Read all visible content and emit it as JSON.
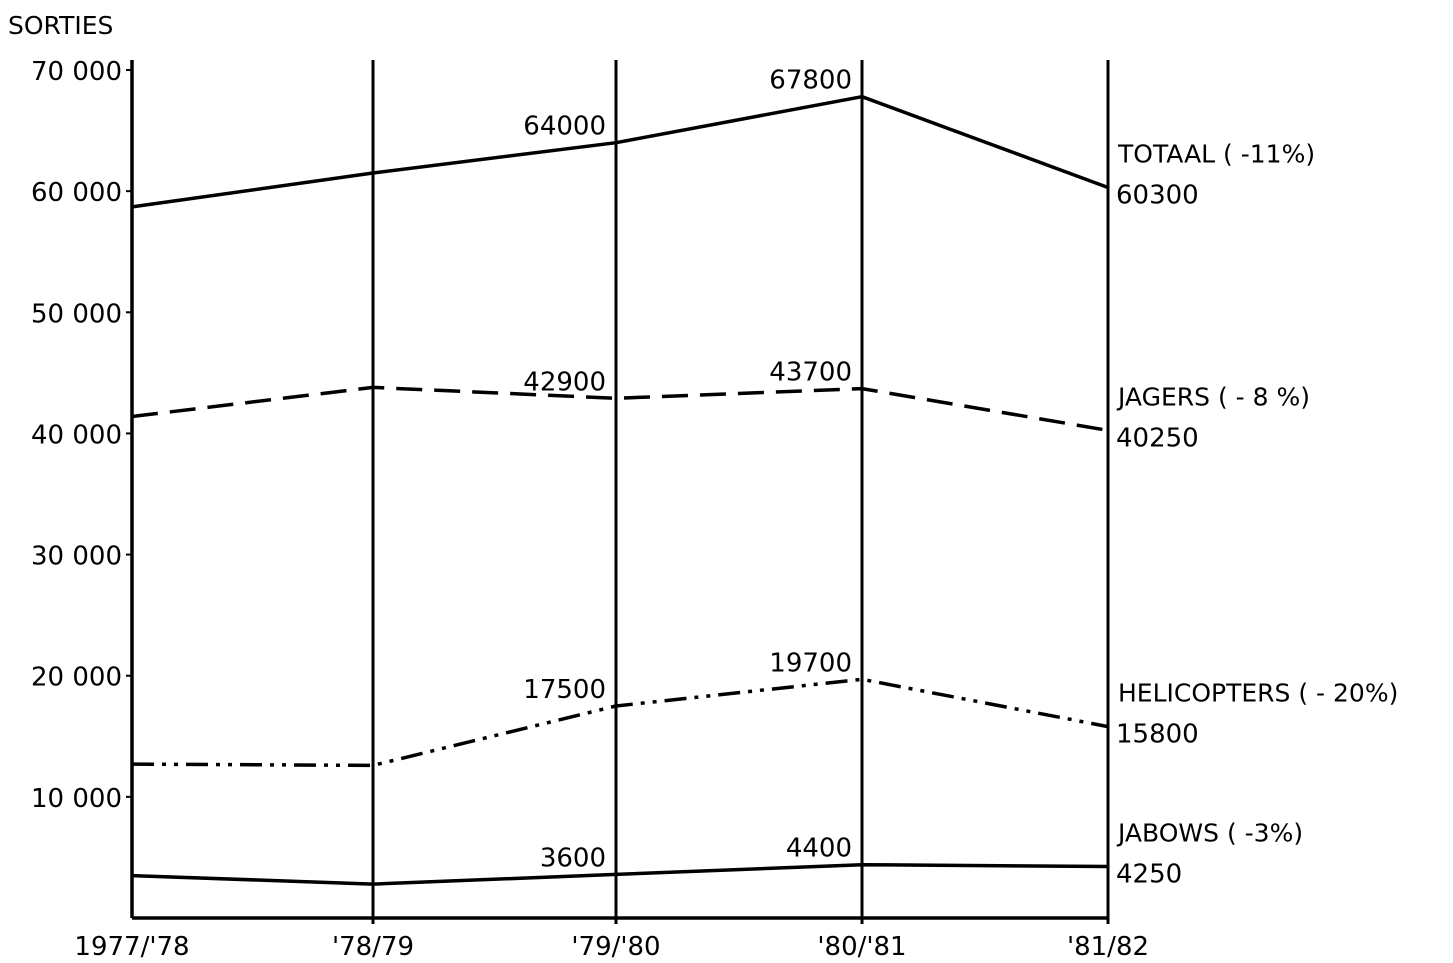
{
  "colors": {
    "background": "#ffffff",
    "ink": "#000000"
  },
  "chart_data": {
    "type": "line",
    "title": "",
    "ylabel": "SORTIES",
    "xlabel": "",
    "categories": [
      "1977/'78",
      "'78/79",
      "'79/'80",
      "'80/'81",
      "'81/82"
    ],
    "ylim": [
      0,
      70000
    ],
    "yticks": [
      10000,
      20000,
      30000,
      40000,
      50000,
      60000,
      70000
    ],
    "ytick_labels": [
      "10 000",
      "20 000",
      "30 000",
      "40 000",
      "50 000",
      "60 000",
      "70 000"
    ],
    "grid": "vertical lines at each category",
    "series": [
      {
        "name": "TOTAAL",
        "legend_label": "TOTAAL ( -11%)",
        "line_style": "solid",
        "values": [
          58700,
          61500,
          64000,
          67800,
          60300
        ],
        "point_labels": [
          "",
          "",
          "64000",
          "67800",
          "60300"
        ]
      },
      {
        "name": "JAGERS",
        "legend_label": "JAGERS ( - 8 %)",
        "line_style": "dashed",
        "values": [
          41400,
          43800,
          42900,
          43700,
          40250
        ],
        "point_labels": [
          "",
          "",
          "42900",
          "43700",
          "40250"
        ]
      },
      {
        "name": "HELICOPTERS",
        "legend_label": "HELICOPTERS ( - 20%)",
        "line_style": "dash-dot-dot",
        "values": [
          12700,
          12600,
          17500,
          19700,
          15800
        ],
        "point_labels": [
          "",
          "",
          "17500",
          "19700",
          "15800"
        ]
      },
      {
        "name": "JABOWS",
        "legend_label": "JABOWS ( -3%)",
        "line_style": "solid",
        "values": [
          3500,
          2800,
          3600,
          4400,
          4250
        ],
        "point_labels": [
          "",
          "",
          "3600",
          "4400",
          "4250"
        ]
      }
    ]
  }
}
